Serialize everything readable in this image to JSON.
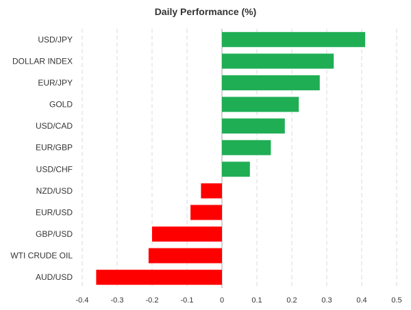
{
  "chart_data": {
    "type": "bar",
    "orientation": "horizontal",
    "title": "Daily Performance (%)",
    "xlabel": "",
    "ylabel": "",
    "categories": [
      "USD/JPY",
      "DOLLAR INDEX",
      "EUR/JPY",
      "GOLD",
      "USD/CAD",
      "EUR/GBP",
      "USD/CHF",
      "NZD/USD",
      "EUR/USD",
      "GBP/USD",
      "WTI CRUDE OIL",
      "AUD/USD"
    ],
    "values": [
      0.41,
      0.32,
      0.28,
      0.22,
      0.18,
      0.14,
      0.08,
      -0.06,
      -0.09,
      -0.2,
      -0.21,
      -0.36
    ],
    "xlim": [
      -0.4,
      0.5
    ],
    "xticks": [
      -0.4,
      -0.3,
      -0.2,
      -0.1,
      0,
      0.1,
      0.2,
      0.3,
      0.4,
      0.5
    ],
    "xtick_labels": [
      "-0.4",
      "-0.3",
      "-0.2",
      "-0.1",
      "0",
      "0.1",
      "0.2",
      "0.3",
      "0.4",
      "0.5"
    ],
    "grid": "vertical-dashed",
    "legend": "none",
    "colors": {
      "positive": "#1fae54",
      "negative": "#ff0000"
    }
  }
}
